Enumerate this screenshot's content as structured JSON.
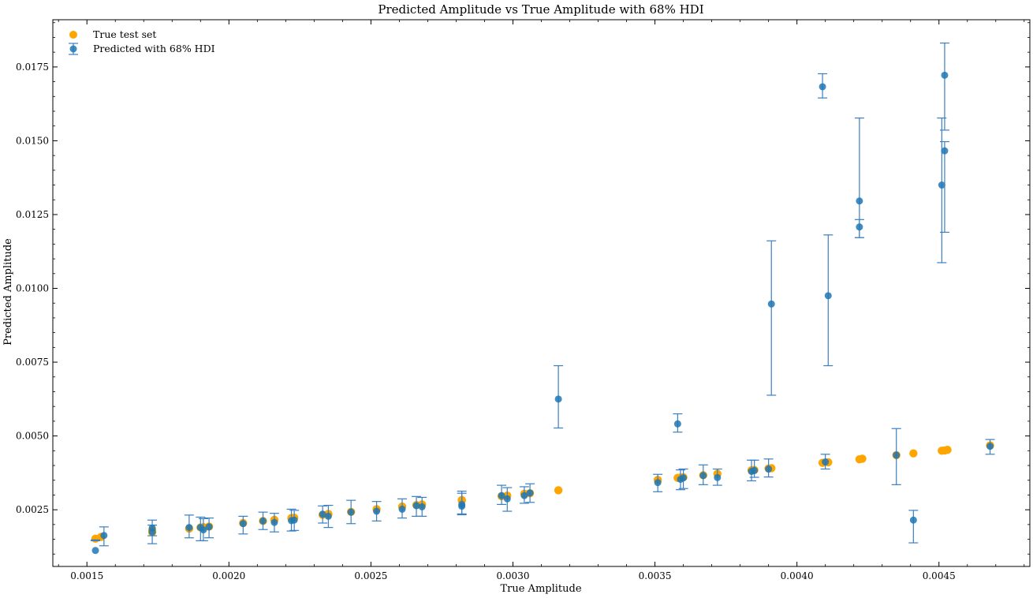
{
  "chart_data": {
    "type": "scatter",
    "title": "Predicted Amplitude vs True Amplitude with 68% HDI",
    "xlabel": "True Amplitude",
    "ylabel": "Predicted Amplitude",
    "xlim": [
      0.00138,
      0.00482
    ],
    "ylim": [
      0.00058,
      0.0191
    ],
    "xticks": [
      0.0015,
      0.002,
      0.0025,
      0.003,
      0.0035,
      0.004,
      0.0045
    ],
    "xtick_labels": [
      "0.0015",
      "0.0020",
      "0.0025",
      "0.0030",
      "0.0035",
      "0.0040",
      "0.0045"
    ],
    "yticks": [
      0.0025,
      0.005,
      0.0075,
      0.01,
      0.0125,
      0.015,
      0.0175
    ],
    "ytick_labels": [
      "0.0025",
      "0.0050",
      "0.0075",
      "0.0100",
      "0.0125",
      "0.0150",
      "0.0175"
    ],
    "grid": false,
    "legend_position": "top-left",
    "colors": {
      "true": "#FFA500",
      "pred": "#1f77b4"
    },
    "series": [
      {
        "name": "True test set",
        "kind": "scatter",
        "x": [
          0.00153,
          0.00155,
          0.00173,
          0.00173,
          0.00186,
          0.0019,
          0.00191,
          0.00193,
          0.00205,
          0.00212,
          0.00216,
          0.00222,
          0.00223,
          0.00233,
          0.00235,
          0.00235,
          0.00243,
          0.00252,
          0.00261,
          0.00266,
          0.00268,
          0.00282,
          0.00282,
          0.00296,
          0.00298,
          0.00304,
          0.00306,
          0.00316,
          0.00351,
          0.00358,
          0.00359,
          0.0036,
          0.00367,
          0.00372,
          0.00384,
          0.00385,
          0.0039,
          0.00391,
          0.00409,
          0.00411,
          0.00422,
          0.00423,
          0.00435,
          0.00441,
          0.00451,
          0.00452,
          0.00453,
          0.00468
        ],
        "y": [
          0.00152,
          0.00158,
          0.00174,
          0.0018,
          0.00186,
          0.0019,
          0.00191,
          0.00193,
          0.00205,
          0.00212,
          0.00216,
          0.00222,
          0.00223,
          0.00233,
          0.00235,
          0.00236,
          0.00243,
          0.00252,
          0.00261,
          0.00266,
          0.00268,
          0.00282,
          0.00283,
          0.00296,
          0.00298,
          0.00304,
          0.00306,
          0.00316,
          0.00351,
          0.00358,
          0.00359,
          0.0036,
          0.00367,
          0.00372,
          0.00384,
          0.00385,
          0.0039,
          0.00391,
          0.00409,
          0.00411,
          0.00421,
          0.00423,
          0.00435,
          0.00441,
          0.0045,
          0.00451,
          0.00453,
          0.00468
        ]
      },
      {
        "name": "Predicted with 68% HDI",
        "kind": "errorbar",
        "x": [
          0.00153,
          0.00156,
          0.00173,
          0.00173,
          0.00186,
          0.0019,
          0.00191,
          0.00193,
          0.00205,
          0.00212,
          0.00216,
          0.00222,
          0.00223,
          0.00233,
          0.00235,
          0.00243,
          0.00252,
          0.00261,
          0.00266,
          0.00268,
          0.00282,
          0.00282,
          0.00296,
          0.00298,
          0.00304,
          0.00306,
          0.00316,
          0.00351,
          0.00358,
          0.00359,
          0.0036,
          0.00367,
          0.00372,
          0.00384,
          0.00385,
          0.0039,
          0.00391,
          0.00409,
          0.0041,
          0.00411,
          0.00422,
          0.00422,
          0.00435,
          0.00441,
          0.00451,
          0.00452,
          0.00452,
          0.00468
        ],
        "y": [
          0.00112,
          0.00163,
          0.00175,
          0.00188,
          0.0019,
          0.0019,
          0.00182,
          0.00192,
          0.00203,
          0.00212,
          0.00207,
          0.00213,
          0.00215,
          0.00235,
          0.00228,
          0.00242,
          0.00245,
          0.00252,
          0.00264,
          0.0026,
          0.00268,
          0.00262,
          0.00298,
          0.00287,
          0.00298,
          0.00307,
          0.00625,
          0.00342,
          0.00541,
          0.00353,
          0.00358,
          0.00366,
          0.00359,
          0.0038,
          0.00383,
          0.00388,
          0.00947,
          0.01683,
          0.00412,
          0.00975,
          0.01296,
          0.01208,
          0.00435,
          0.00215,
          0.0135,
          0.01722,
          0.01466,
          0.00465
        ],
        "yerr_low": [
          0.00145,
          0.00128,
          0.00135,
          0.00162,
          0.00155,
          0.00145,
          0.00145,
          0.00155,
          0.00168,
          0.00183,
          0.00175,
          0.00178,
          0.0018,
          0.00205,
          0.0019,
          0.00203,
          0.00212,
          0.00222,
          0.00228,
          0.00228,
          0.00233,
          0.00236,
          0.00268,
          0.00245,
          0.00272,
          0.00275,
          0.00527,
          0.00311,
          0.00513,
          0.00318,
          0.00322,
          0.00335,
          0.00333,
          0.00348,
          0.0036,
          0.00361,
          0.00638,
          0.01645,
          0.00388,
          0.00738,
          0.01172,
          0.01172,
          0.00335,
          0.00138,
          0.01087,
          0.01536,
          0.0119,
          0.00438
        ],
        "yerr_high": [
          0.00148,
          0.00192,
          0.00198,
          0.00215,
          0.00232,
          0.00225,
          0.0022,
          0.00222,
          0.00228,
          0.00242,
          0.00238,
          0.00252,
          0.00248,
          0.00263,
          0.00265,
          0.00282,
          0.00278,
          0.00287,
          0.00295,
          0.00292,
          0.00313,
          0.00306,
          0.00333,
          0.00325,
          0.00328,
          0.00338,
          0.00738,
          0.0037,
          0.00575,
          0.00385,
          0.00388,
          0.00402,
          0.00388,
          0.00418,
          0.00418,
          0.00422,
          0.01161,
          0.01727,
          0.00438,
          0.01181,
          0.01577,
          0.01233,
          0.00525,
          0.00248,
          0.01577,
          0.01831,
          0.01497,
          0.00488
        ]
      }
    ]
  }
}
